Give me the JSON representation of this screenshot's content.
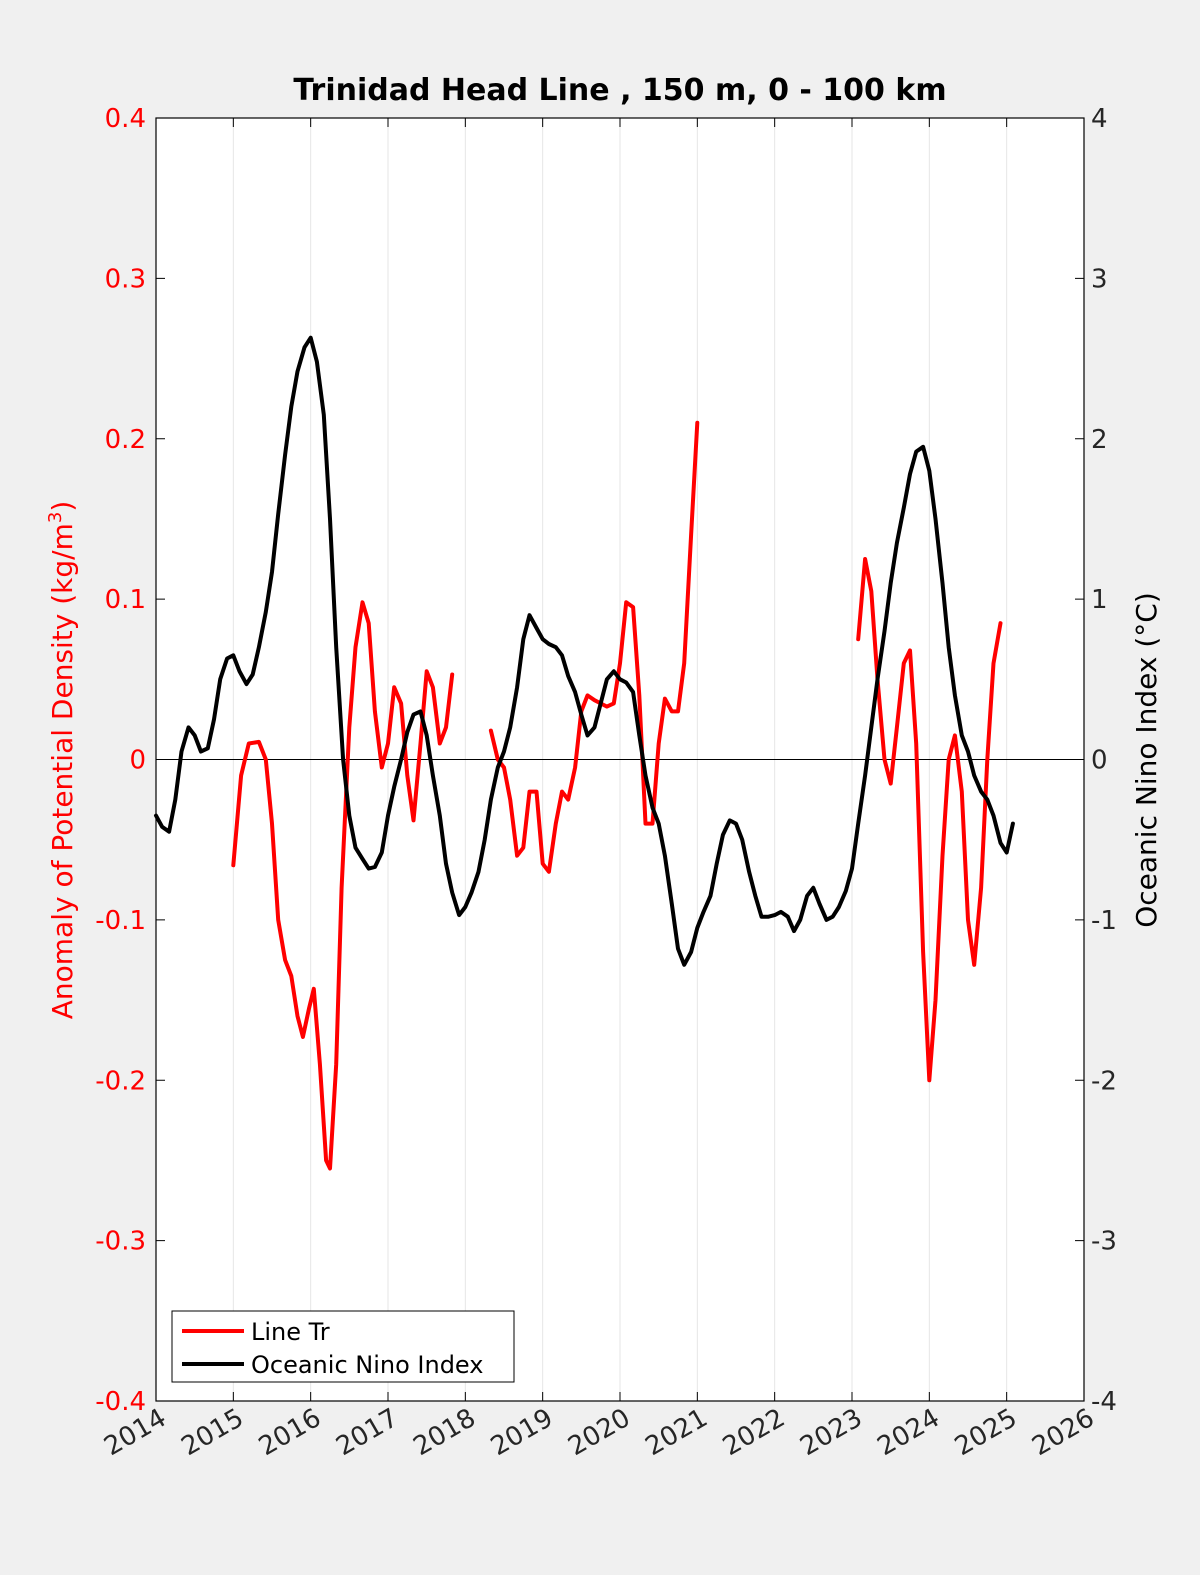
{
  "chart_data": {
    "type": "line",
    "title": "Trinidad Head Line , 150 m, 0 - 100 km",
    "ylabel_left": {
      "text": "Anomaly of Potential Density (kg/m",
      "sup": "3",
      "close": ")"
    },
    "ylabel_right": "Oceanic Nino Index (°C)",
    "xlim": [
      2014,
      2026
    ],
    "ylim_left": [
      -0.4,
      0.4
    ],
    "ylim_right": [
      -4,
      4
    ],
    "x_ticks": [
      "2014",
      "2015",
      "2016",
      "2017",
      "2018",
      "2019",
      "2020",
      "2021",
      "2022",
      "2023",
      "2024",
      "2025",
      "2026"
    ],
    "y_ticks_left": [
      "-0.4",
      "-0.3",
      "-0.2",
      "-0.1",
      "0",
      "0.1",
      "0.2",
      "0.3",
      "0.4"
    ],
    "y_ticks_right": [
      "-4",
      "-3",
      "-2",
      "-1",
      "0",
      "1",
      "2",
      "3",
      "4"
    ],
    "grid": "vertical",
    "zero_line": true,
    "legend_position": "bottom-left",
    "series": [
      {
        "name": "Line Tr",
        "axis": "left",
        "color": "#ff0000",
        "segments": [
          [
            [
              2015.0,
              -0.066
            ],
            [
              2015.1,
              -0.01
            ],
            [
              2015.2,
              0.01
            ],
            [
              2015.33,
              0.011
            ],
            [
              2015.42,
              0.0
            ],
            [
              2015.5,
              -0.04
            ],
            [
              2015.58,
              -0.1
            ],
            [
              2015.67,
              -0.125
            ],
            [
              2015.75,
              -0.135
            ],
            [
              2015.83,
              -0.16
            ],
            [
              2015.9,
              -0.173
            ],
            [
              2015.98,
              -0.155
            ],
            [
              2016.04,
              -0.143
            ],
            [
              2016.12,
              -0.19
            ],
            [
              2016.2,
              -0.25
            ],
            [
              2016.25,
              -0.255
            ],
            [
              2016.33,
              -0.19
            ],
            [
              2016.4,
              -0.08
            ],
            [
              2016.5,
              0.02
            ],
            [
              2016.58,
              0.07
            ],
            [
              2016.67,
              0.098
            ],
            [
              2016.75,
              0.085
            ],
            [
              2016.83,
              0.03
            ],
            [
              2016.92,
              -0.005
            ],
            [
              2017.0,
              0.01
            ],
            [
              2017.08,
              0.045
            ],
            [
              2017.17,
              0.035
            ],
            [
              2017.25,
              -0.01
            ],
            [
              2017.33,
              -0.038
            ],
            [
              2017.42,
              0.01
            ],
            [
              2017.5,
              0.055
            ],
            [
              2017.58,
              0.045
            ],
            [
              2017.67,
              0.01
            ],
            [
              2017.75,
              0.02
            ],
            [
              2017.83,
              0.053
            ]
          ],
          [
            [
              2018.33,
              0.018
            ],
            [
              2018.42,
              0.0
            ],
            [
              2018.5,
              -0.005
            ],
            [
              2018.58,
              -0.025
            ],
            [
              2018.67,
              -0.06
            ],
            [
              2018.75,
              -0.055
            ],
            [
              2018.83,
              -0.02
            ],
            [
              2018.92,
              -0.02
            ],
            [
              2019.0,
              -0.065
            ],
            [
              2019.08,
              -0.07
            ],
            [
              2019.17,
              -0.04
            ],
            [
              2019.25,
              -0.02
            ],
            [
              2019.33,
              -0.025
            ],
            [
              2019.42,
              -0.005
            ],
            [
              2019.5,
              0.03
            ],
            [
              2019.58,
              0.04
            ],
            [
              2019.67,
              0.037
            ],
            [
              2019.75,
              0.035
            ],
            [
              2019.83,
              0.033
            ],
            [
              2019.92,
              0.035
            ],
            [
              2020.0,
              0.06
            ],
            [
              2020.08,
              0.098
            ],
            [
              2020.17,
              0.095
            ],
            [
              2020.25,
              0.04
            ],
            [
              2020.33,
              -0.04
            ],
            [
              2020.42,
              -0.04
            ],
            [
              2020.5,
              0.01
            ],
            [
              2020.58,
              0.038
            ],
            [
              2020.67,
              0.03
            ],
            [
              2020.75,
              0.03
            ],
            [
              2020.83,
              0.06
            ],
            [
              2020.92,
              0.14
            ],
            [
              2021.0,
              0.21
            ]
          ],
          [
            [
              2023.08,
              0.075
            ],
            [
              2023.17,
              0.125
            ],
            [
              2023.25,
              0.105
            ],
            [
              2023.33,
              0.05
            ],
            [
              2023.42,
              0.0
            ],
            [
              2023.5,
              -0.015
            ],
            [
              2023.58,
              0.02
            ],
            [
              2023.67,
              0.06
            ],
            [
              2023.75,
              0.068
            ],
            [
              2023.83,
              0.01
            ],
            [
              2023.92,
              -0.12
            ],
            [
              2024.0,
              -0.2
            ],
            [
              2024.08,
              -0.15
            ],
            [
              2024.17,
              -0.06
            ],
            [
              2024.25,
              0.0
            ],
            [
              2024.33,
              0.015
            ],
            [
              2024.42,
              -0.02
            ],
            [
              2024.5,
              -0.1
            ],
            [
              2024.58,
              -0.128
            ],
            [
              2024.67,
              -0.08
            ],
            [
              2024.75,
              0.0
            ],
            [
              2024.83,
              0.06
            ],
            [
              2024.92,
              0.085
            ]
          ]
        ]
      },
      {
        "name": "Oceanic Nino Index",
        "axis": "right",
        "color": "#000000",
        "segments": [
          [
            [
              2014.0,
              -0.35
            ],
            [
              2014.08,
              -0.42
            ],
            [
              2014.17,
              -0.45
            ],
            [
              2014.25,
              -0.25
            ],
            [
              2014.33,
              0.05
            ],
            [
              2014.42,
              0.2
            ],
            [
              2014.5,
              0.15
            ],
            [
              2014.58,
              0.05
            ],
            [
              2014.67,
              0.07
            ],
            [
              2014.75,
              0.25
            ],
            [
              2014.83,
              0.5
            ],
            [
              2014.92,
              0.63
            ],
            [
              2015.0,
              0.65
            ],
            [
              2015.08,
              0.55
            ],
            [
              2015.17,
              0.47
            ],
            [
              2015.25,
              0.53
            ],
            [
              2015.33,
              0.7
            ],
            [
              2015.42,
              0.92
            ],
            [
              2015.5,
              1.17
            ],
            [
              2015.58,
              1.53
            ],
            [
              2015.67,
              1.9
            ],
            [
              2015.75,
              2.2
            ],
            [
              2015.83,
              2.42
            ],
            [
              2015.92,
              2.57
            ],
            [
              2016.0,
              2.63
            ],
            [
              2016.08,
              2.48
            ],
            [
              2016.17,
              2.15
            ],
            [
              2016.25,
              1.5
            ],
            [
              2016.33,
              0.7
            ],
            [
              2016.42,
              0.0
            ],
            [
              2016.5,
              -0.35
            ],
            [
              2016.58,
              -0.55
            ],
            [
              2016.67,
              -0.62
            ],
            [
              2016.75,
              -0.68
            ],
            [
              2016.83,
              -0.67
            ],
            [
              2016.92,
              -0.58
            ],
            [
              2017.0,
              -0.35
            ],
            [
              2017.08,
              -0.17
            ],
            [
              2017.17,
              0.0
            ],
            [
              2017.25,
              0.17
            ],
            [
              2017.33,
              0.28
            ],
            [
              2017.42,
              0.3
            ],
            [
              2017.5,
              0.15
            ],
            [
              2017.58,
              -0.1
            ],
            [
              2017.67,
              -0.35
            ],
            [
              2017.75,
              -0.65
            ],
            [
              2017.83,
              -0.83
            ],
            [
              2017.92,
              -0.97
            ],
            [
              2018.0,
              -0.92
            ],
            [
              2018.08,
              -0.83
            ],
            [
              2018.17,
              -0.7
            ],
            [
              2018.25,
              -0.5
            ],
            [
              2018.33,
              -0.25
            ],
            [
              2018.42,
              -0.05
            ],
            [
              2018.5,
              0.05
            ],
            [
              2018.58,
              0.2
            ],
            [
              2018.67,
              0.45
            ],
            [
              2018.75,
              0.75
            ],
            [
              2018.83,
              0.9
            ],
            [
              2018.92,
              0.82
            ],
            [
              2019.0,
              0.75
            ],
            [
              2019.08,
              0.72
            ],
            [
              2019.17,
              0.7
            ],
            [
              2019.25,
              0.65
            ],
            [
              2019.33,
              0.52
            ],
            [
              2019.42,
              0.42
            ],
            [
              2019.5,
              0.28
            ],
            [
              2019.58,
              0.15
            ],
            [
              2019.67,
              0.2
            ],
            [
              2019.75,
              0.35
            ],
            [
              2019.83,
              0.5
            ],
            [
              2019.92,
              0.55
            ],
            [
              2020.0,
              0.5
            ],
            [
              2020.08,
              0.48
            ],
            [
              2020.17,
              0.42
            ],
            [
              2020.25,
              0.15
            ],
            [
              2020.33,
              -0.1
            ],
            [
              2020.42,
              -0.3
            ],
            [
              2020.5,
              -0.4
            ],
            [
              2020.58,
              -0.6
            ],
            [
              2020.67,
              -0.9
            ],
            [
              2020.75,
              -1.18
            ],
            [
              2020.83,
              -1.28
            ],
            [
              2020.92,
              -1.2
            ],
            [
              2021.0,
              -1.05
            ],
            [
              2021.08,
              -0.95
            ],
            [
              2021.17,
              -0.85
            ],
            [
              2021.25,
              -0.65
            ],
            [
              2021.33,
              -0.47
            ],
            [
              2021.42,
              -0.38
            ],
            [
              2021.5,
              -0.4
            ],
            [
              2021.58,
              -0.5
            ],
            [
              2021.67,
              -0.7
            ],
            [
              2021.75,
              -0.85
            ],
            [
              2021.83,
              -0.98
            ],
            [
              2021.92,
              -0.98
            ],
            [
              2022.0,
              -0.97
            ],
            [
              2022.08,
              -0.95
            ],
            [
              2022.17,
              -0.98
            ],
            [
              2022.25,
              -1.07
            ],
            [
              2022.33,
              -1.0
            ],
            [
              2022.42,
              -0.85
            ],
            [
              2022.5,
              -0.8
            ],
            [
              2022.58,
              -0.9
            ],
            [
              2022.67,
              -1.0
            ],
            [
              2022.75,
              -0.98
            ],
            [
              2022.83,
              -0.92
            ],
            [
              2022.92,
              -0.82
            ],
            [
              2023.0,
              -0.68
            ],
            [
              2023.08,
              -0.4
            ],
            [
              2023.17,
              -0.1
            ],
            [
              2023.25,
              0.2
            ],
            [
              2023.33,
              0.5
            ],
            [
              2023.42,
              0.8
            ],
            [
              2023.5,
              1.1
            ],
            [
              2023.58,
              1.35
            ],
            [
              2023.67,
              1.57
            ],
            [
              2023.75,
              1.78
            ],
            [
              2023.83,
              1.92
            ],
            [
              2023.92,
              1.95
            ],
            [
              2024.0,
              1.8
            ],
            [
              2024.08,
              1.5
            ],
            [
              2024.17,
              1.1
            ],
            [
              2024.25,
              0.7
            ],
            [
              2024.33,
              0.4
            ],
            [
              2024.42,
              0.15
            ],
            [
              2024.5,
              0.05
            ],
            [
              2024.58,
              -0.1
            ],
            [
              2024.67,
              -0.2
            ],
            [
              2024.75,
              -0.25
            ],
            [
              2024.83,
              -0.35
            ],
            [
              2024.92,
              -0.52
            ],
            [
              2025.0,
              -0.58
            ],
            [
              2025.08,
              -0.4
            ]
          ]
        ]
      }
    ]
  }
}
